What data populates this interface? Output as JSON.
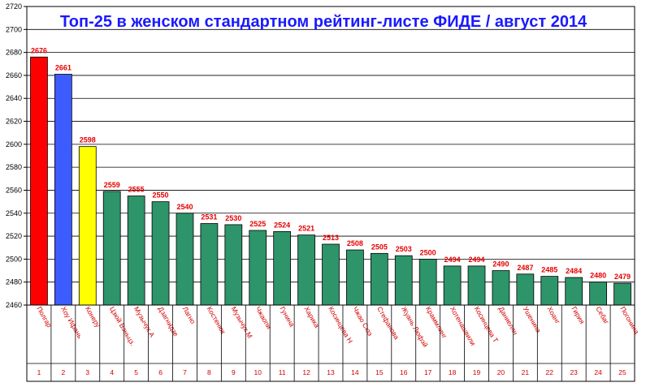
{
  "chart_data": {
    "type": "bar",
    "title": "Топ-25 в женском стандартном рейтинг-листе ФИДЕ / август 2014",
    "xlabel": "",
    "ylabel": "",
    "ylim": [
      2460,
      2720
    ],
    "ystep": 20,
    "grid": true,
    "categories": [
      "Полгар",
      "Хоу Ифань",
      "Конеру",
      "Цзюй Вэньцз.",
      "Музычук А",
      "Дзагнидзе",
      "Лагно",
      "Костенюк",
      "Музычук М",
      "Чжаопи",
      "Гунина",
      "Харика",
      "Косинцева Н",
      "Чжао Сюэ",
      "Стефанова",
      "Жуань Люфэй",
      "Краммлинг",
      "Хотенашвили",
      "Косинцева Т",
      "Даниелян",
      "Ушенина",
      "Хоанг",
      "Гирия",
      "Себаг",
      "Погонина"
    ],
    "ranks": [
      "1",
      "2",
      "3",
      "4",
      "5",
      "6",
      "7",
      "8",
      "9",
      "10",
      "11",
      "12",
      "13",
      "14",
      "15",
      "16",
      "17",
      "18",
      "19",
      "20",
      "21",
      "22",
      "23",
      "24",
      "25"
    ],
    "values": [
      2676,
      2661,
      2598,
      2559,
      2555,
      2550,
      2540,
      2531,
      2530,
      2525,
      2524,
      2521,
      2513,
      2508,
      2505,
      2503,
      2500,
      2494,
      2494,
      2490,
      2487,
      2485,
      2484,
      2480,
      2479
    ],
    "colors": [
      "#ff0000",
      "#3d5cff",
      "#ffff00",
      "#2e9469",
      "#2e9469",
      "#2e9469",
      "#2e9469",
      "#2e9469",
      "#2e9469",
      "#2e9469",
      "#2e9469",
      "#2e9469",
      "#2e9469",
      "#2e9469",
      "#2e9469",
      "#2e9469",
      "#2e9469",
      "#2e9469",
      "#2e9469",
      "#2e9469",
      "#2e9469",
      "#2e9469",
      "#2e9469",
      "#2e9469",
      "#2e9469"
    ],
    "colors_meaning": {
      "gold": "#ff0000",
      "silver": "#3d5cff",
      "bronze": "#ffff00",
      "other": "#2e9469"
    },
    "value_label_color": "#e60000",
    "title_color": "#1a1aff"
  }
}
